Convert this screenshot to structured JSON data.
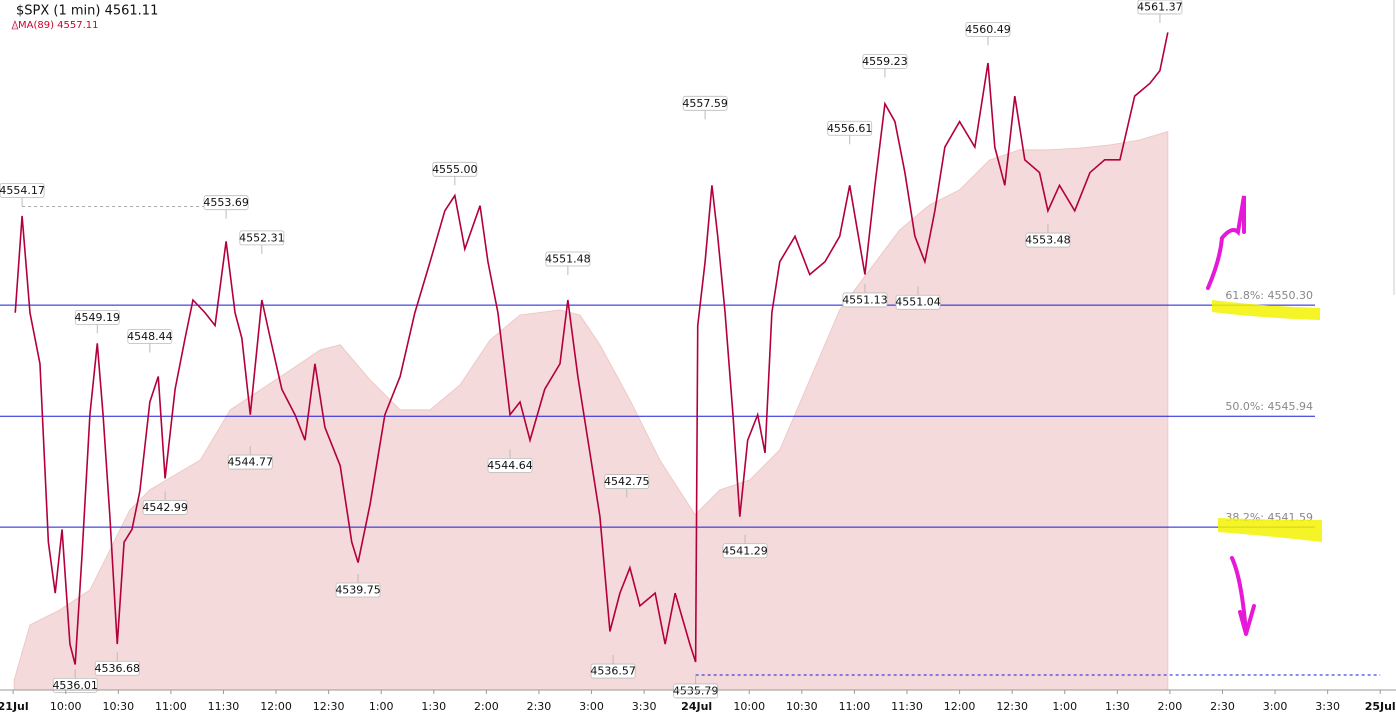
{
  "chart_data": {
    "type": "line",
    "title": "$SPX (1 min) 4561.11",
    "xlim": [
      -0.25,
      26.3
    ],
    "ylim": [
      4535.2,
      4562.27
    ],
    "xticks": [
      {
        "value": 0,
        "label": "21Jul"
      },
      {
        "value": 1,
        "label": "10:00"
      },
      {
        "value": 2,
        "label": "10:30"
      },
      {
        "value": 3,
        "label": "11:00"
      },
      {
        "value": 4,
        "label": "11:30"
      },
      {
        "value": 5,
        "label": "12:00"
      },
      {
        "value": 6,
        "label": "12:30"
      },
      {
        "value": 7,
        "label": "1:00"
      },
      {
        "value": 8,
        "label": "1:30"
      },
      {
        "value": 9,
        "label": "2:00"
      },
      {
        "value": 10,
        "label": "2:30"
      },
      {
        "value": 11,
        "label": "3:00"
      },
      {
        "value": 12,
        "label": "3:30"
      },
      {
        "value": 13,
        "label": "24Jul"
      },
      {
        "value": 14,
        "label": "10:00"
      },
      {
        "value": 15,
        "label": "10:30"
      },
      {
        "value": 16,
        "label": "11:00"
      },
      {
        "value": 17,
        "label": "11:30"
      },
      {
        "value": 18,
        "label": "12:00"
      },
      {
        "value": 19,
        "label": "12:30"
      },
      {
        "value": 20,
        "label": "1:00"
      },
      {
        "value": 21,
        "label": "1:30"
      },
      {
        "value": 22,
        "label": "2:00"
      },
      {
        "value": 23,
        "label": "2:30"
      },
      {
        "value": 24,
        "label": "3:00"
      },
      {
        "value": 25,
        "label": "3:30"
      },
      {
        "value": 26,
        "label": "25Jul"
      }
    ],
    "series": [
      {
        "name": "$SPX (1 min) 4561.11",
        "color": "#b3003b",
        "x": [
          0.04,
          0.17,
          0.32,
          0.51,
          0.67,
          0.8,
          0.93,
          1.08,
          1.18,
          1.31,
          1.46,
          1.6,
          1.71,
          1.84,
          1.98,
          2.11,
          2.26,
          2.41,
          2.6,
          2.76,
          2.89,
          3.08,
          3.27,
          3.42,
          3.65,
          3.84,
          4.05,
          4.22,
          4.35,
          4.51,
          4.73,
          4.89,
          5.11,
          5.36,
          5.55,
          5.74,
          5.93,
          6.22,
          6.44,
          6.56,
          6.79,
          7.07,
          7.36,
          7.64,
          7.93,
          8.21,
          8.4,
          8.59,
          8.88,
          9.03,
          9.22,
          9.45,
          9.64,
          9.83,
          10.11,
          10.4,
          10.55,
          10.74,
          10.97,
          11.16,
          11.35,
          11.54,
          11.73,
          11.92,
          12.21,
          12.4,
          12.59,
          12.87,
          12.98,
          13.02,
          13.16,
          13.29,
          13.4,
          13.54,
          13.69,
          13.82,
          13.97,
          14.16,
          14.3,
          14.43,
          14.58,
          14.87,
          15.15,
          15.44,
          15.72,
          15.91,
          16.2,
          16.39,
          16.58,
          16.77,
          16.96,
          17.15,
          17.34,
          17.53,
          17.72,
          18.0,
          18.29,
          18.54,
          18.67,
          18.86,
          19.05,
          19.24,
          19.52,
          19.68,
          19.9,
          20.19,
          20.48,
          20.76,
          21.05,
          21.33,
          21.62,
          21.81,
          21.96
        ],
        "values": [
          4550,
          4553.8,
          4550,
          4548,
          4541,
          4539,
          4541.5,
          4537,
          4536.2,
          4540.5,
          4546,
          4548.8,
          4546,
          4542,
          4537,
          4541,
          4541.5,
          4543,
          4546.5,
          4547.5,
          4543.5,
          4547,
          4549,
          4550.5,
          4550,
          4549.5,
          4552.8,
          4550,
          4549,
          4546,
          4550.5,
          4549,
          4547,
          4546,
          4545,
          4548,
          4545.5,
          4544,
          4541,
          4540.2,
          4542.5,
          4546,
          4547.5,
          4550,
          4552,
          4554,
          4554.6,
          4552.5,
          4554.2,
          4552,
          4550,
          4546,
          4546.5,
          4545,
          4547,
          4548,
          4550.5,
          4547.5,
          4544.5,
          4542,
          4537.5,
          4539,
          4540,
          4538.5,
          4539,
          4537,
          4539,
          4537,
          4536.3,
          4549.5,
          4552,
          4555,
          4553,
          4550,
          4546,
          4542,
          4545,
          4546,
          4544.5,
          4550,
          4552,
          4553,
          4551.5,
          4552,
          4553,
          4555,
          4551.5,
          4555,
          4558.2,
          4557.5,
          4555.5,
          4553,
          4552,
          4554,
          4556.5,
          4557.5,
          4556.5,
          4559.8,
          4556.5,
          4555,
          4558.5,
          4556,
          4555.5,
          4554,
          4555,
          4554,
          4555.5,
          4556,
          4556,
          4558.5,
          4559,
          4559.5,
          4561
        ]
      },
      {
        "name": "MA(89) 4557.11",
        "color": "#f4dada",
        "x": [
          0.02,
          0.32,
          0.89,
          1.46,
          1.84,
          2.22,
          2.6,
          3.08,
          3.56,
          4.13,
          4.7,
          5.27,
          5.84,
          6.22,
          6.79,
          7.36,
          7.93,
          8.5,
          9.07,
          9.64,
          10.4,
          10.78,
          11.16,
          11.73,
          12.3,
          12.97,
          13.44,
          14.01,
          14.58,
          15.15,
          15.72,
          16.29,
          16.86,
          17.43,
          18.0,
          18.57,
          19.14,
          19.71,
          20.29,
          20.86,
          21.43,
          21.96
        ],
        "values": [
          4535.59,
          4537.75,
          4538.34,
          4539.12,
          4540.69,
          4542.26,
          4543.05,
          4543.64,
          4544.22,
          4546.19,
          4546.97,
          4547.75,
          4548.54,
          4548.74,
          4547.36,
          4546.19,
          4546.19,
          4547.17,
          4548.93,
          4549.91,
          4550.11,
          4549.91,
          4548.74,
          4546.58,
          4544.22,
          4542.07,
          4543.05,
          4543.44,
          4544.62,
          4547.36,
          4550.11,
          4551.68,
          4553.25,
          4554.23,
          4554.82,
          4555.99,
          4556.39,
          4556.39,
          4556.46,
          4556.58,
          4556.78,
          4557.11
        ]
      }
    ],
    "high_labels": {
      "x": [
        0.17,
        1.6,
        2.6,
        4.05,
        4.73,
        8.4,
        10.55,
        11.67,
        13.16,
        15.91,
        16.58,
        18.54,
        21.81
      ],
      "values": [
        4554.17,
        4549.19,
        4548.44,
        4553.69,
        4552.31,
        4555.0,
        4551.48,
        4542.75,
        4557.59,
        4556.61,
        4559.23,
        4560.49,
        4561.37
      ],
      "value_labels": [
        "4554.17",
        "4549.19",
        "4548.44",
        "4553.69",
        "4552.31",
        "4555.00",
        "4551.48",
        "4542.75",
        "4557.59",
        "4556.61",
        "4559.23",
        "4560.49",
        "4561.37"
      ]
    },
    "low_labels": {
      "x": [
        1.18,
        1.98,
        2.89,
        4.51,
        6.56,
        9.45,
        11.41,
        12.98,
        13.92,
        16.2,
        17.21,
        19.68
      ],
      "values": [
        4536.01,
        4536.68,
        4542.99,
        4544.77,
        4539.75,
        4544.64,
        4536.57,
        4535.79,
        4541.29,
        4551.13,
        4551.04,
        4553.48
      ],
      "value_labels": [
        "4536.01",
        "4536.68",
        "4542.99",
        "4544.77",
        "4539.75",
        "4544.64",
        "4536.57",
        "4535.79",
        "4541.29",
        "4551.13",
        "4551.04",
        "4553.48"
      ]
    },
    "fib_levels": [
      {
        "value": 4550.3,
        "label": "61.8%: 4550.30"
      },
      {
        "value": 4545.94,
        "label": "50.0%: 4545.94"
      },
      {
        "value": 4541.59,
        "label": "38.2%: 4541.59"
      }
    ],
    "fib_color": "#1a1adb",
    "reference_lines": [
      {
        "value": 4554.17,
        "x": [
          0.17,
          4.05
        ],
        "color": "#aaaaaa"
      },
      {
        "value": 4535.79,
        "x": [
          12.98,
          26
        ],
        "color": "#1a1adb"
      }
    ]
  }
}
